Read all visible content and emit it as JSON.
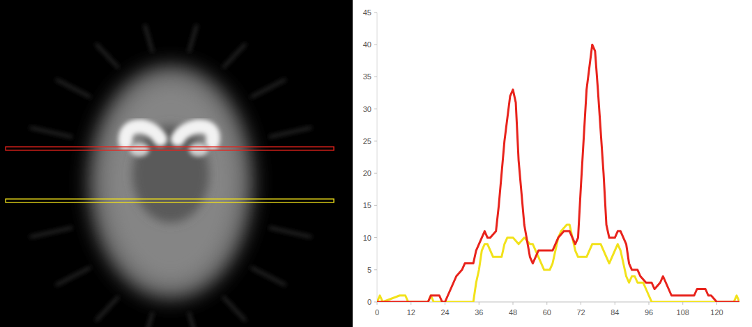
{
  "chart_data": {
    "type": "line",
    "xlim": [
      0,
      128
    ],
    "ylim": [
      0,
      45
    ],
    "xticks": [
      0,
      12,
      24,
      36,
      48,
      60,
      72,
      84,
      96,
      108,
      120
    ],
    "yticks": [
      0,
      5,
      10,
      15,
      20,
      25,
      30,
      35,
      40,
      45
    ],
    "grid": false,
    "series": [
      {
        "color": "#e8231c",
        "x": [
          0,
          18,
          19,
          22,
          23,
          24,
          25,
          26,
          28,
          30,
          31,
          34,
          35,
          36,
          38,
          39,
          40,
          42,
          43,
          45,
          47,
          48,
          49,
          50,
          52,
          54,
          55,
          56,
          57,
          60,
          62,
          63,
          64,
          66,
          68,
          69,
          70,
          71,
          72,
          74,
          76,
          77,
          78,
          80,
          81,
          82,
          84,
          85,
          86,
          88,
          89,
          90,
          92,
          93,
          95,
          97,
          98,
          100,
          101,
          102,
          103,
          104,
          110,
          112,
          113,
          116,
          117,
          118,
          120,
          128
        ],
        "values": [
          0,
          0,
          1,
          1,
          0,
          0,
          1,
          2,
          4,
          5,
          6,
          6,
          8,
          9,
          11,
          10,
          10,
          11,
          15,
          25,
          32,
          33,
          31,
          22,
          12,
          7,
          6,
          7,
          8,
          8,
          8,
          9,
          10,
          11,
          11,
          10,
          9,
          10,
          18,
          33,
          40,
          39,
          33,
          20,
          12,
          10,
          10,
          11,
          11,
          9,
          6,
          5,
          5,
          4,
          3,
          3,
          2,
          3,
          4,
          3,
          2,
          1,
          1,
          1,
          2,
          2,
          1,
          1,
          0,
          0
        ]
      },
      {
        "color": "#f2e21a",
        "x": [
          0,
          1,
          2,
          8,
          10,
          11,
          18,
          19,
          20,
          34,
          35,
          36,
          37,
          38,
          39,
          40,
          41,
          43,
          44,
          45,
          46,
          48,
          50,
          52,
          54,
          55,
          56,
          57,
          58,
          59,
          61,
          62,
          63,
          64,
          65,
          67,
          68,
          69,
          70,
          71,
          74,
          75,
          76,
          79,
          80,
          81,
          82,
          83,
          84,
          85,
          86,
          87,
          88,
          89,
          90,
          91,
          92,
          94,
          95,
          96,
          97,
          126,
          127,
          128
        ],
        "values": [
          0,
          1,
          0,
          1,
          1,
          0,
          0,
          1,
          0,
          0,
          3,
          5,
          8,
          9,
          9,
          8,
          7,
          7,
          7,
          9,
          10,
          10,
          9,
          10,
          9,
          9,
          8,
          7,
          6,
          5,
          5,
          6,
          8,
          10,
          11,
          12,
          12,
          10,
          8,
          7,
          7,
          8,
          9,
          9,
          8,
          7,
          6,
          7,
          8,
          9,
          8,
          6,
          4,
          3,
          4,
          4,
          3,
          3,
          2,
          1,
          0,
          0,
          1,
          0
        ]
      }
    ]
  }
}
